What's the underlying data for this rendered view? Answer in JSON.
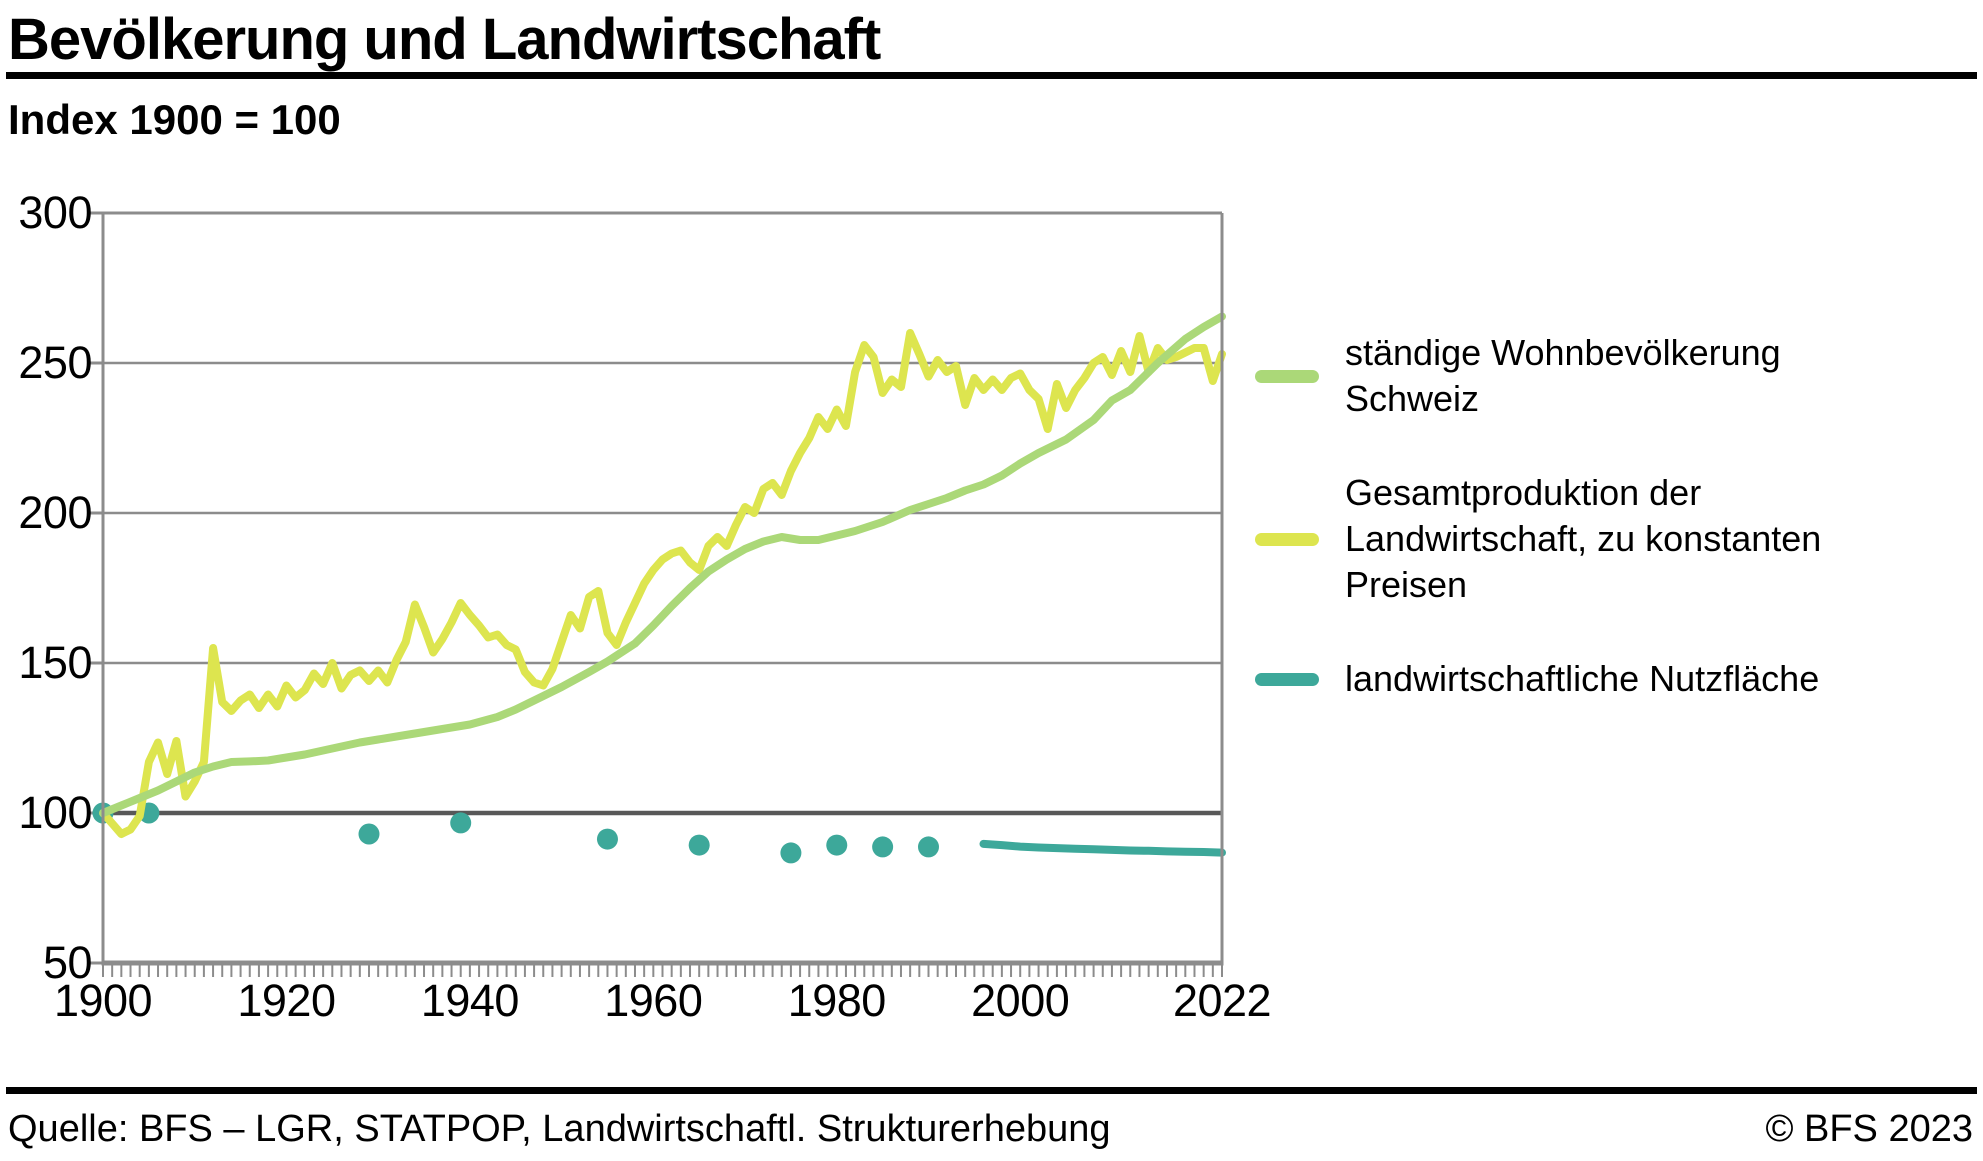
{
  "header": {
    "title": "Bevölkerung und Landwirtschaft",
    "subtitle": "Index 1900 = 100"
  },
  "legend": {
    "items": [
      {
        "label": "ständige Wohnbevölkerung Schweiz",
        "color": "#abd878"
      },
      {
        "label": "Gesamtproduktion der Landwirtschaft, zu konstanten Preisen",
        "color": "#dde54f"
      },
      {
        "label": "landwirtschaftliche Nutzfläche",
        "color": "#3da89a"
      }
    ]
  },
  "footer": {
    "source": "Quelle: BFS – LGR, STATPOP, Landwirtschaftl. Strukturerhebung",
    "copyright": "© BFS 2023"
  },
  "chart_data": {
    "type": "line",
    "title": "Bevölkerung und Landwirtschaft",
    "subtitle": "Index 1900 = 100",
    "grid": true,
    "legend_position": "right",
    "x_axis": {
      "min": 1900,
      "max": 2022,
      "tick_labels": [
        "1900",
        "1920",
        "1940",
        "1960",
        "1980",
        "2000",
        "2022"
      ],
      "tick_years": [
        1900,
        1920,
        1940,
        1960,
        1980,
        2000,
        2022
      ],
      "minor_tick_every_year": true
    },
    "y_axis": {
      "min": 50,
      "max": 300,
      "ticks": [
        300,
        250,
        200,
        150,
        100,
        50
      ],
      "emphasized_gridline": 100
    },
    "colors": {
      "grid": "#8c8c8c",
      "grid_emphasized": "#585858",
      "frame": "#8c8c8c"
    },
    "series": [
      {
        "name": "ständige Wohnbevölkerung Schweiz",
        "color": "#abd878",
        "style": "line",
        "points": [
          [
            1900,
            100
          ],
          [
            1902,
            102.5
          ],
          [
            1904,
            105
          ],
          [
            1906,
            107.5
          ],
          [
            1908,
            110.5
          ],
          [
            1910,
            113.5
          ],
          [
            1912,
            115.5
          ],
          [
            1914,
            117
          ],
          [
            1916,
            117.2
          ],
          [
            1918,
            117.5
          ],
          [
            1920,
            118.5
          ],
          [
            1922,
            119.5
          ],
          [
            1925,
            121.5
          ],
          [
            1928,
            123.5
          ],
          [
            1930,
            124.5
          ],
          [
            1933,
            126
          ],
          [
            1936,
            127.5
          ],
          [
            1940,
            129.5
          ],
          [
            1943,
            132
          ],
          [
            1945,
            134.5
          ],
          [
            1948,
            139
          ],
          [
            1950,
            142
          ],
          [
            1953,
            147
          ],
          [
            1955,
            150.5
          ],
          [
            1958,
            156.5
          ],
          [
            1960,
            162.5
          ],
          [
            1962,
            169
          ],
          [
            1964,
            175
          ],
          [
            1966,
            180.5
          ],
          [
            1968,
            184.5
          ],
          [
            1970,
            188
          ],
          [
            1972,
            190.5
          ],
          [
            1974,
            192
          ],
          [
            1976,
            191
          ],
          [
            1978,
            191
          ],
          [
            1980,
            192.5
          ],
          [
            1982,
            194
          ],
          [
            1985,
            197
          ],
          [
            1988,
            201
          ],
          [
            1990,
            203
          ],
          [
            1992,
            205
          ],
          [
            1994,
            207.5
          ],
          [
            1996,
            209.5
          ],
          [
            1998,
            212.5
          ],
          [
            2000,
            216.5
          ],
          [
            2002,
            220
          ],
          [
            2005,
            224.5
          ],
          [
            2008,
            231
          ],
          [
            2010,
            237.5
          ],
          [
            2012,
            241
          ],
          [
            2015,
            250
          ],
          [
            2018,
            258
          ],
          [
            2020,
            262
          ],
          [
            2022,
            265.5
          ]
        ]
      },
      {
        "name": "Gesamtproduktion der Landwirtschaft, zu konstanten Preisen",
        "color": "#dde54f",
        "style": "line",
        "points": [
          [
            1900,
            100
          ],
          [
            1901,
            96.5
          ],
          [
            1902,
            93
          ],
          [
            1903,
            94.5
          ],
          [
            1904,
            99
          ],
          [
            1905,
            117
          ],
          [
            1906,
            123.5
          ],
          [
            1907,
            113
          ],
          [
            1908,
            124
          ],
          [
            1909,
            105.5
          ],
          [
            1910,
            110.5
          ],
          [
            1911,
            117
          ],
          [
            1912,
            155
          ],
          [
            1913,
            137
          ],
          [
            1914,
            134
          ],
          [
            1915,
            137.5
          ],
          [
            1916,
            139.5
          ],
          [
            1917,
            135
          ],
          [
            1918,
            139.5
          ],
          [
            1919,
            135.5
          ],
          [
            1920,
            142.5
          ],
          [
            1921,
            138.5
          ],
          [
            1922,
            141
          ],
          [
            1923,
            146.5
          ],
          [
            1924,
            143
          ],
          [
            1925,
            150
          ],
          [
            1926,
            141.5
          ],
          [
            1927,
            146
          ],
          [
            1928,
            147.5
          ],
          [
            1929,
            144
          ],
          [
            1930,
            147.5
          ],
          [
            1931,
            143.5
          ],
          [
            1932,
            151
          ],
          [
            1933,
            157
          ],
          [
            1934,
            169.5
          ],
          [
            1935,
            162
          ],
          [
            1936,
            153.5
          ],
          [
            1937,
            158
          ],
          [
            1938,
            163.5
          ],
          [
            1939,
            170
          ],
          [
            1940,
            166
          ],
          [
            1941,
            162.5
          ],
          [
            1942,
            158.5
          ],
          [
            1943,
            159.5
          ],
          [
            1944,
            156
          ],
          [
            1945,
            154.5
          ],
          [
            1946,
            147
          ],
          [
            1947,
            143.5
          ],
          [
            1948,
            142.5
          ],
          [
            1949,
            148
          ],
          [
            1950,
            157
          ],
          [
            1951,
            166
          ],
          [
            1952,
            161.5
          ],
          [
            1953,
            172
          ],
          [
            1954,
            174
          ],
          [
            1955,
            160
          ],
          [
            1956,
            156
          ],
          [
            1957,
            163.5
          ],
          [
            1958,
            170
          ],
          [
            1959,
            176.5
          ],
          [
            1960,
            181
          ],
          [
            1961,
            184.5
          ],
          [
            1962,
            186.5
          ],
          [
            1963,
            187.5
          ],
          [
            1964,
            183.5
          ],
          [
            1965,
            181
          ],
          [
            1966,
            189
          ],
          [
            1967,
            192
          ],
          [
            1968,
            189
          ],
          [
            1969,
            196
          ],
          [
            1970,
            202
          ],
          [
            1971,
            200
          ],
          [
            1972,
            208
          ],
          [
            1973,
            210
          ],
          [
            1974,
            206
          ],
          [
            1975,
            214
          ],
          [
            1976,
            220
          ],
          [
            1977,
            225
          ],
          [
            1978,
            232
          ],
          [
            1979,
            228
          ],
          [
            1980,
            234.5
          ],
          [
            1981,
            229
          ],
          [
            1982,
            247
          ],
          [
            1983,
            256
          ],
          [
            1984,
            252
          ],
          [
            1985,
            240
          ],
          [
            1986,
            244.5
          ],
          [
            1987,
            242
          ],
          [
            1988,
            260
          ],
          [
            1989,
            253
          ],
          [
            1990,
            245.5
          ],
          [
            1991,
            251
          ],
          [
            1992,
            247
          ],
          [
            1993,
            249
          ],
          [
            1994,
            236
          ],
          [
            1995,
            245
          ],
          [
            1996,
            241
          ],
          [
            1997,
            244.5
          ],
          [
            1998,
            241
          ],
          [
            1999,
            245
          ],
          [
            2000,
            246.5
          ],
          [
            2001,
            241
          ],
          [
            2002,
            238
          ],
          [
            2003,
            228
          ],
          [
            2004,
            243
          ],
          [
            2005,
            235
          ],
          [
            2006,
            241
          ],
          [
            2007,
            245
          ],
          [
            2008,
            250
          ],
          [
            2009,
            252
          ],
          [
            2010,
            246
          ],
          [
            2011,
            254
          ],
          [
            2012,
            247
          ],
          [
            2013,
            259
          ],
          [
            2014,
            247
          ],
          [
            2015,
            255
          ],
          [
            2016,
            251
          ],
          [
            2017,
            252
          ],
          [
            2018,
            253.5
          ],
          [
            2019,
            255
          ],
          [
            2020,
            255
          ],
          [
            2021,
            244
          ],
          [
            2022,
            253
          ]
        ]
      },
      {
        "name": "landwirtschaftliche Nutzfläche",
        "color": "#3da89a",
        "style": "dots",
        "points": [
          [
            1900,
            100
          ],
          [
            1905,
            100
          ],
          [
            1929,
            93
          ],
          [
            1939,
            96.7
          ],
          [
            1955,
            91.3
          ],
          [
            1965,
            89.3
          ],
          [
            1975,
            86.7
          ],
          [
            1980,
            89.3
          ],
          [
            1985,
            88.7
          ],
          [
            1990,
            88.7
          ]
        ]
      },
      {
        "name": "landwirtschaftliche Nutzfläche",
        "color": "#3da89a",
        "style": "line",
        "points": [
          [
            1996,
            89.7
          ],
          [
            1998,
            89.3
          ],
          [
            2000,
            88.8
          ],
          [
            2002,
            88.5
          ],
          [
            2004,
            88.3
          ],
          [
            2006,
            88.1
          ],
          [
            2008,
            87.9
          ],
          [
            2010,
            87.7
          ],
          [
            2012,
            87.5
          ],
          [
            2014,
            87.4
          ],
          [
            2016,
            87.2
          ],
          [
            2018,
            87.1
          ],
          [
            2020,
            87
          ],
          [
            2022,
            86.8
          ]
        ]
      }
    ]
  }
}
